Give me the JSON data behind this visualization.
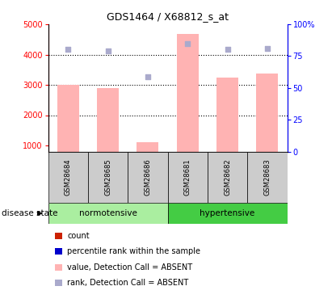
{
  "title": "GDS1464 / X68812_s_at",
  "samples": [
    "GSM28684",
    "GSM28685",
    "GSM28686",
    "GSM28681",
    "GSM28682",
    "GSM28683"
  ],
  "bar_values": [
    3005,
    2900,
    1100,
    4680,
    3230,
    3380
  ],
  "scatter_blue_left": [
    4170,
    4110,
    3260,
    4360,
    4180,
    4210
  ],
  "ylim_left": [
    800,
    5000
  ],
  "yticks_left": [
    1000,
    2000,
    3000,
    4000,
    5000
  ],
  "ylim_right": [
    0,
    100
  ],
  "yticks_right": [
    0,
    25,
    50,
    75,
    100
  ],
  "bar_color": "#FFB3B3",
  "scatter_color": "#AAAACC",
  "bar_width": 0.55,
  "group_defs": [
    {
      "label": "normotensive",
      "start": 0,
      "end": 3,
      "color": "#AAEEA0"
    },
    {
      "label": "hypertensive",
      "start": 3,
      "end": 6,
      "color": "#44CC44"
    }
  ],
  "group_label": "disease state",
  "legend_items": [
    {
      "label": "count",
      "color": "#CC2200"
    },
    {
      "label": "percentile rank within the sample",
      "color": "#0000CC"
    },
    {
      "label": "value, Detection Call = ABSENT",
      "color": "#FFB3B3"
    },
    {
      "label": "rank, Detection Call = ABSENT",
      "color": "#AAAACC"
    }
  ],
  "title_fontsize": 9,
  "tick_fontsize": 7,
  "label_fontsize": 7,
  "legend_fontsize": 7
}
